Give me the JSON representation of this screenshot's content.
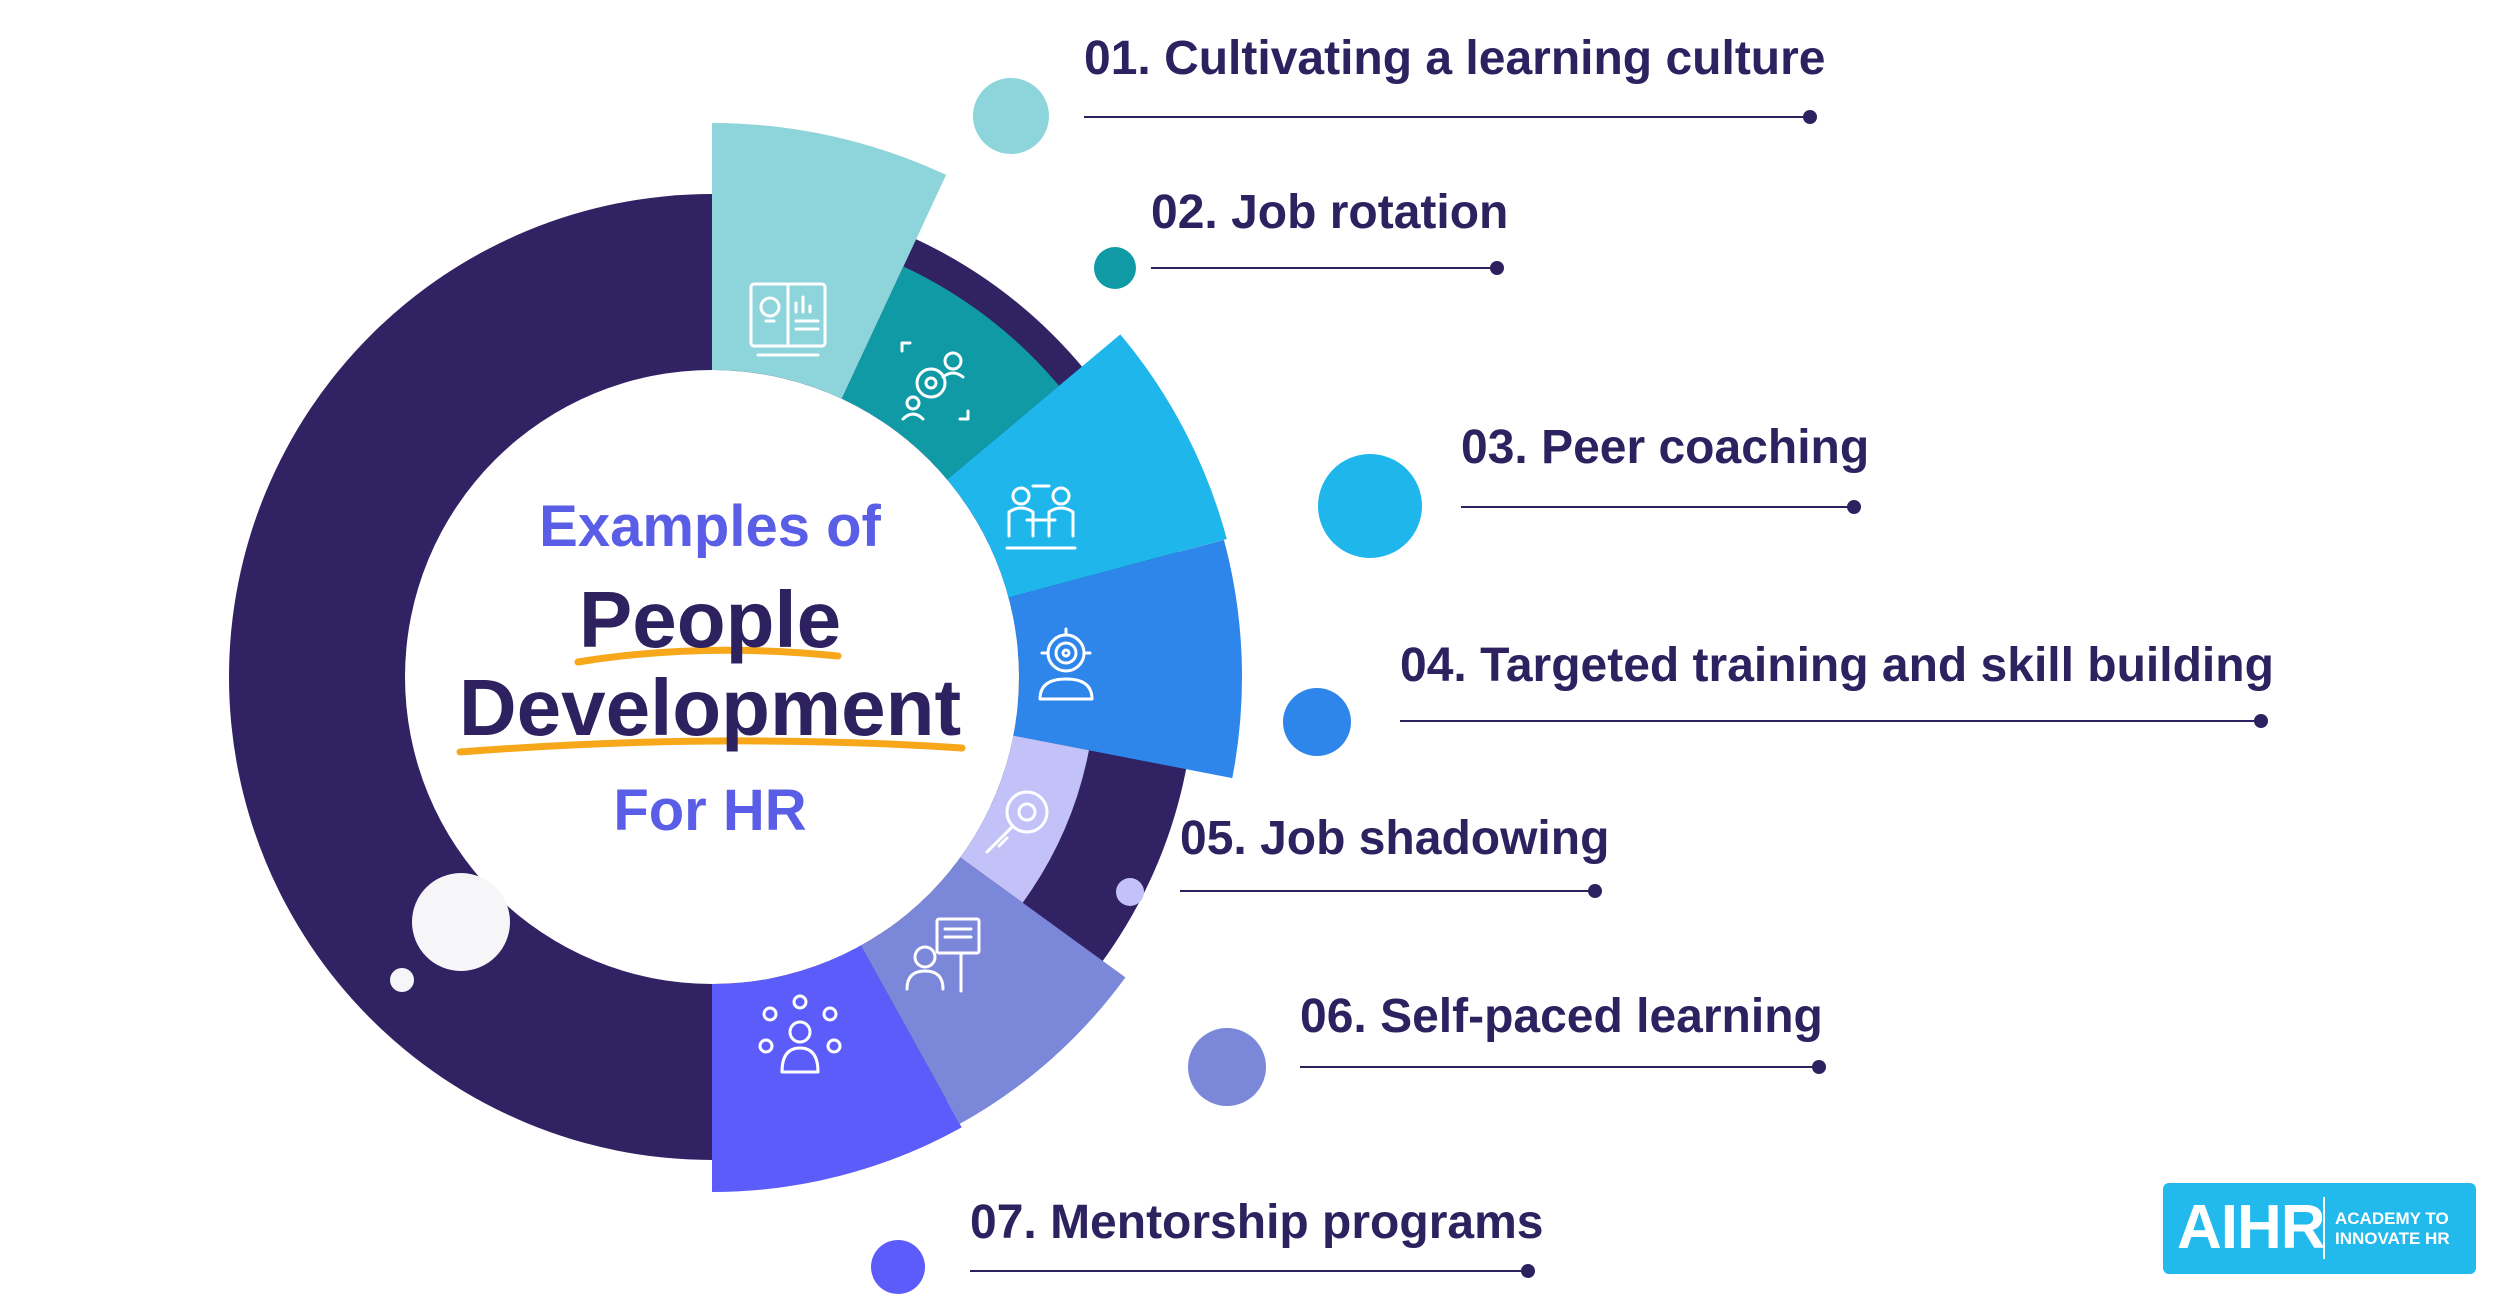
{
  "center": {
    "line1": "Examples of",
    "line2": "People",
    "line3": "Development",
    "line4": "For HR"
  },
  "items": [
    {
      "label": "01. Cultivating a learning culture",
      "color": "#8dd5db",
      "icon": "learning-book-icon"
    },
    {
      "label": "02. Job rotation",
      "color": "#0f9aa6",
      "icon": "rotation-gears-icon"
    },
    {
      "label": "03. Peer coaching",
      "color": "#1fb6ec",
      "icon": "peer-coaching-icon"
    },
    {
      "label": "04. Targeted training and skill building",
      "color": "#2e86ea",
      "icon": "target-person-icon"
    },
    {
      "label": "05. Job shadowing",
      "color": "#c3c2f8",
      "icon": "magnifier-gear-icon"
    },
    {
      "label": "06. Self-paced learning",
      "color": "#7b87d9",
      "icon": "self-learning-icon"
    },
    {
      "label": "07. Mentorship programs",
      "color": "#5b5cfa",
      "icon": "mentor-network-icon"
    }
  ],
  "colors": {
    "ring": "#312264",
    "title_accent": "#5a5ee6",
    "underline": "#f6a81a",
    "text_dark": "#2d2160"
  },
  "logo": {
    "wordmark": "AIHR",
    "tagline_line1": "ACADEMY TO",
    "tagline_line2": "INNOVATE HR"
  }
}
